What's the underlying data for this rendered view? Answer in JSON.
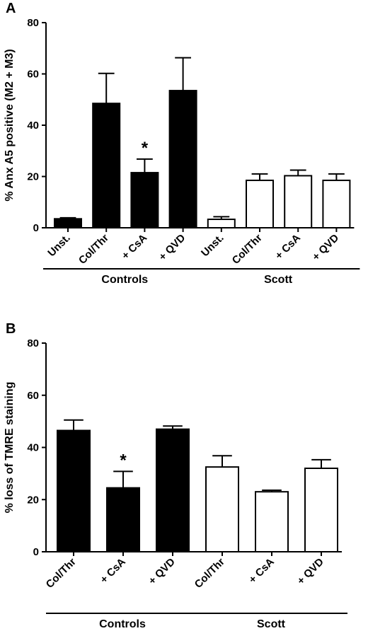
{
  "chart_data": [
    {
      "panel": "A",
      "type": "bar",
      "ylabel": "% Anx A5 positive (M2 + M3)",
      "ylim": [
        0,
        80
      ],
      "yticks": [
        0,
        20,
        40,
        60,
        80
      ],
      "categories": [
        "Unst.",
        "Col/Thr",
        "+ CsA",
        "+ QVD",
        "Unst.",
        "Col/Thr",
        "+ CsA",
        "+ QVD"
      ],
      "values": [
        3.5,
        48.5,
        21.5,
        53.5,
        3.3,
        18.5,
        20.3,
        18.5
      ],
      "errors": [
        0.4,
        11.7,
        5.3,
        12.8,
        1.0,
        2.5,
        2.2,
        2.5
      ],
      "fills": [
        "#000000",
        "#000000",
        "#000000",
        "#000000",
        "#ffffff",
        "#ffffff",
        "#ffffff",
        "#ffffff"
      ],
      "groups": [
        {
          "label": "Controls",
          "span": [
            0,
            3
          ]
        },
        {
          "label": "Scott",
          "span": [
            4,
            7
          ]
        }
      ],
      "annotations": [
        {
          "index": 2,
          "text": "*"
        }
      ]
    },
    {
      "panel": "B",
      "type": "bar",
      "ylabel": "% loss of TMRE staining",
      "ylim": [
        0,
        80
      ],
      "yticks": [
        0,
        20,
        40,
        60,
        80
      ],
      "categories": [
        "Col/Thr",
        "+ CsA",
        "+ QVD",
        "Col/Thr",
        "+ CsA",
        "+ QVD"
      ],
      "values": [
        46.5,
        24.5,
        47.0,
        32.5,
        23.0,
        32.0
      ],
      "errors": [
        4.0,
        6.3,
        1.2,
        4.3,
        0.6,
        3.3
      ],
      "fills": [
        "#000000",
        "#000000",
        "#000000",
        "#ffffff",
        "#ffffff",
        "#ffffff"
      ],
      "groups": [
        {
          "label": "Controls",
          "span": [
            0,
            2
          ]
        },
        {
          "label": "Scott",
          "span": [
            3,
            5
          ]
        }
      ],
      "annotations": [
        {
          "index": 1,
          "text": "*"
        }
      ]
    }
  ]
}
